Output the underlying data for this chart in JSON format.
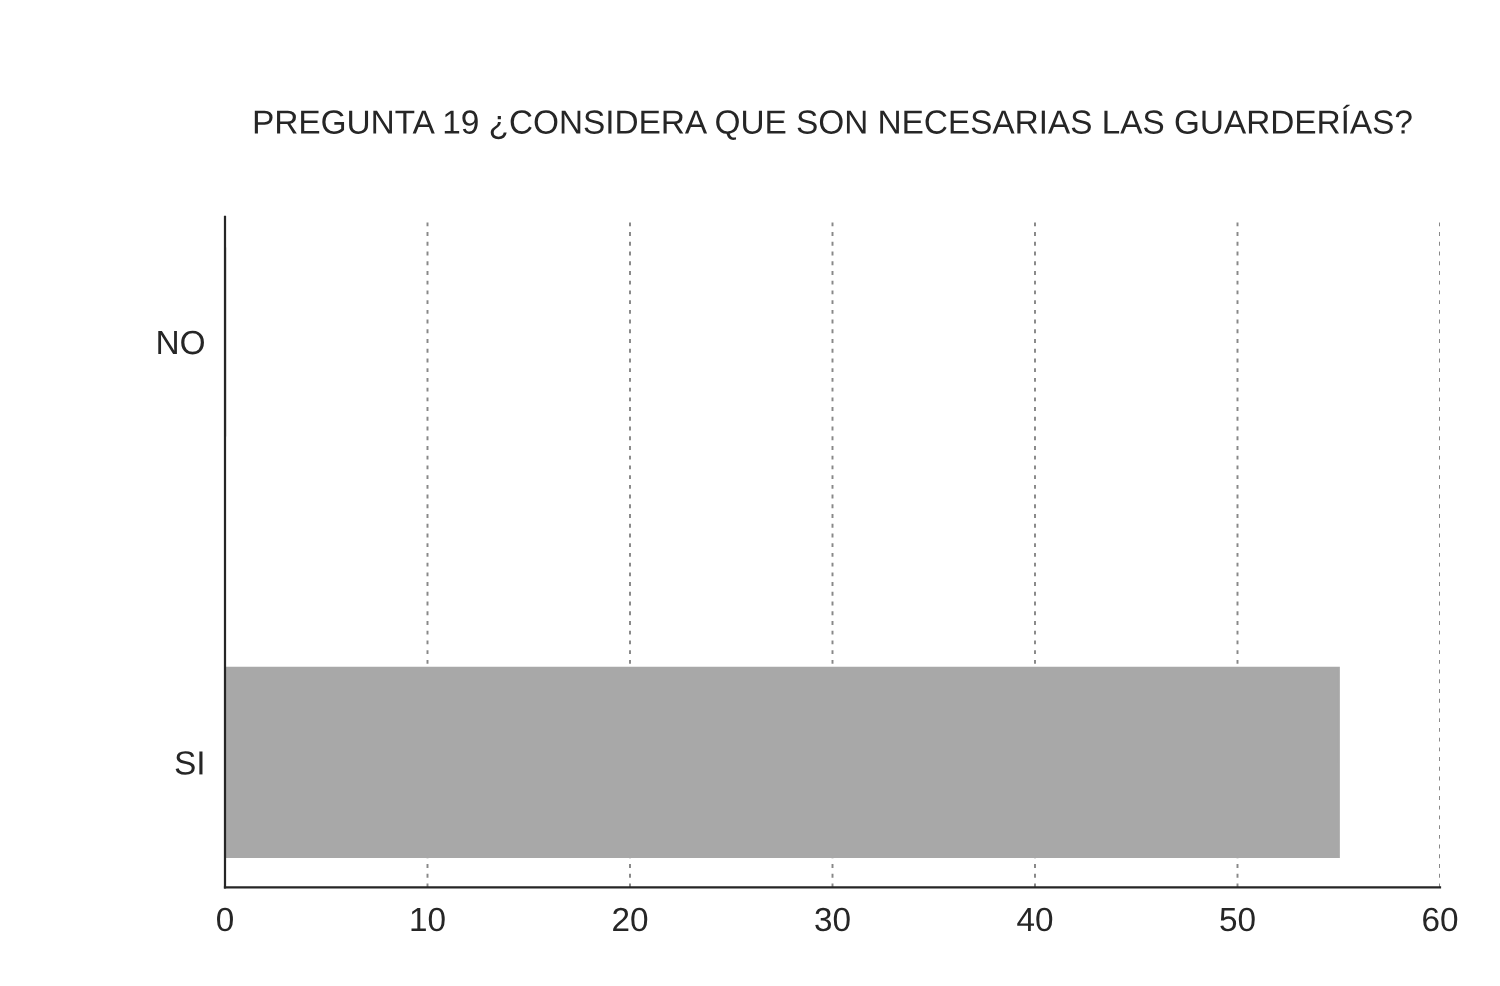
{
  "chart_data": {
    "type": "bar",
    "orientation": "horizontal",
    "title": "PREGUNTA 19 ¿CONSIDERA QUE SON NECESARIAS LAS GUARDERÍAS?",
    "categories": [
      "NO",
      "SI"
    ],
    "values": [
      0,
      55
    ],
    "colors": [
      "#3a3a3a",
      "#a8a8a8"
    ],
    "xlim": [
      0,
      60
    ],
    "xticks": [
      0,
      10,
      20,
      30,
      40,
      50,
      60
    ],
    "grid": "x"
  }
}
